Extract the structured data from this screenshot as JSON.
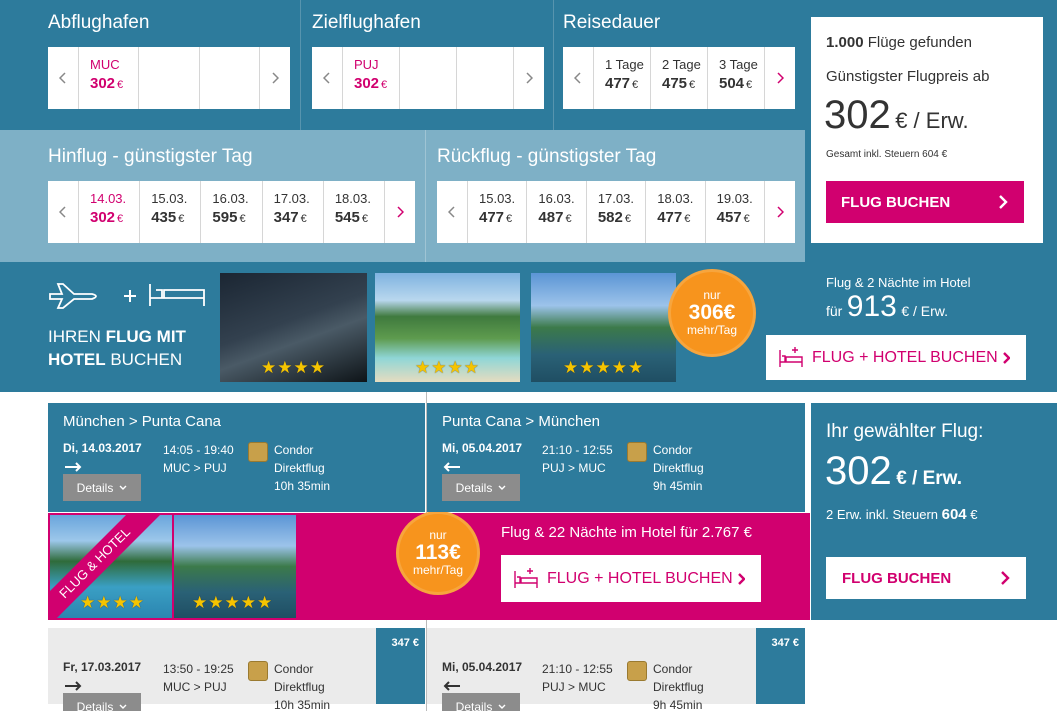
{
  "search": {
    "departure": {
      "label": "Abflughafen",
      "selected": 0,
      "options": [
        {
          "top": "MUC",
          "price": "302",
          "cur": "€"
        }
      ]
    },
    "destination": {
      "label": "Zielflughafen",
      "selected": 0,
      "options": [
        {
          "top": "PUJ",
          "price": "302",
          "cur": "€"
        }
      ]
    },
    "duration": {
      "label": "Reisedauer",
      "options": [
        {
          "top": "1 Tage",
          "price": "477",
          "cur": "€"
        },
        {
          "top": "2 Tage",
          "price": "475",
          "cur": "€"
        },
        {
          "top": "3 Tage",
          "price": "504",
          "cur": "€"
        }
      ]
    }
  },
  "outbound_days": {
    "label": "Hinflug - günstigster Tag",
    "selected": 0,
    "options": [
      {
        "top": "14.03.",
        "price": "302",
        "cur": "€"
      },
      {
        "top": "15.03.",
        "price": "435",
        "cur": "€"
      },
      {
        "top": "16.03.",
        "price": "595",
        "cur": "€"
      },
      {
        "top": "17.03.",
        "price": "347",
        "cur": "€"
      },
      {
        "top": "18.03.",
        "price": "545",
        "cur": "€"
      }
    ]
  },
  "return_days": {
    "label": "Rückflug - günstigster Tag",
    "options": [
      {
        "top": "15.03.",
        "price": "477",
        "cur": "€"
      },
      {
        "top": "16.03.",
        "price": "487",
        "cur": "€"
      },
      {
        "top": "17.03.",
        "price": "582",
        "cur": "€"
      },
      {
        "top": "18.03.",
        "price": "477",
        "cur": "€"
      },
      {
        "top": "19.03.",
        "price": "457",
        "cur": "€"
      }
    ]
  },
  "summary": {
    "count": "1.000",
    "count_text": "Flüge gefunden",
    "cheapest": "Günstigster Flugpreis ab",
    "price": "302",
    "per": "€ / Erw.",
    "total": "Gesamt inkl. Steuern 604 €",
    "button": "FLUG BUCHEN"
  },
  "hotel_banner": {
    "line1": [
      "IHREN",
      "FLUG",
      "MIT"
    ],
    "line2": [
      "HOTEL",
      "BUCHEN"
    ],
    "stars": [
      4,
      4,
      5
    ],
    "badge": {
      "top": "nur",
      "price": "306€",
      "bottom": "mehr/Tag"
    },
    "offer": "Flug & 2 Nächte im Hotel",
    "for": "für",
    "price": "913",
    "per": "€ / Erw.",
    "button": "FLUG + HOTEL BUCHEN"
  },
  "selected_flights": [
    {
      "route": "München > Punta Cana",
      "date": "Di, 14.03.2017",
      "time": "14:05 - 19:40",
      "airports": "MUC > PUJ",
      "airline": "Condor",
      "kind": "Direktflug",
      "duration": "10h 35min",
      "details": "Details"
    },
    {
      "route": "Punta Cana > München",
      "date": "Mi, 05.04.2017",
      "time": "21:10 - 12:55",
      "airports": "PUJ > MUC",
      "airline": "Condor",
      "kind": "Direktflug",
      "duration": "9h 45min",
      "details": "Details"
    }
  ],
  "selection_summary": {
    "title": "Ihr gewählter Flug:",
    "price": "302",
    "per": "€ / Erw.",
    "taxes": "2 Erw. inkl. Steuern",
    "total": "604",
    "cur": "€",
    "button": "FLUG BUCHEN"
  },
  "hotel_offer": {
    "ribbon": "FLUG & HOTEL",
    "stars": [
      4,
      5
    ],
    "badge": {
      "top": "nur",
      "price": "113€",
      "bottom": "mehr/Tag"
    },
    "text": "Flug & 22 Nächte im Hotel für 2.767 €",
    "button": "FLUG + HOTEL BUCHEN"
  },
  "alternatives": [
    {
      "date": "Fr, 17.03.2017",
      "time": "13:50 - 19:25",
      "airports": "MUC > PUJ",
      "airline": "Condor",
      "kind": "Direktflug",
      "duration": "10h 35min",
      "details": "Details",
      "price": "347 €"
    },
    {
      "date": "Mi, 05.04.2017",
      "time": "21:10 - 12:55",
      "airports": "PUJ > MUC",
      "airline": "Condor",
      "kind": "Direktflug",
      "duration": "9h 45min",
      "details": "Details",
      "price": "347 €"
    }
  ]
}
